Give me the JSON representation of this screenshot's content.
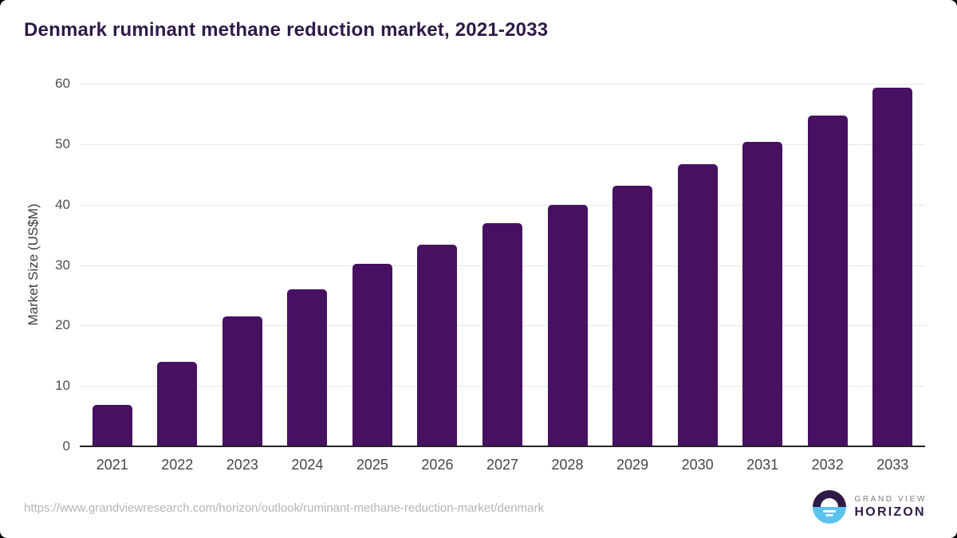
{
  "header": {
    "title": "Denmark ruminant methane reduction market, 2021-2033"
  },
  "chart_data": {
    "type": "bar",
    "title": "Denmark ruminant methane reduction market, 2021-2033",
    "categories": [
      "2021",
      "2022",
      "2023",
      "2024",
      "2025",
      "2026",
      "2027",
      "2028",
      "2029",
      "2030",
      "2031",
      "2032",
      "2033"
    ],
    "values": [
      6.7,
      13.8,
      21.4,
      25.9,
      30.1,
      33.2,
      36.8,
      39.8,
      43.0,
      46.5,
      50.3,
      54.6,
      59.2
    ],
    "xlabel": "",
    "ylabel": "Market Size (US$M)",
    "ylim": [
      0,
      60
    ],
    "yticks": [
      0,
      10,
      20,
      30,
      40,
      50,
      60
    ],
    "grid": true,
    "legend": "none",
    "bar_color": "#471061"
  },
  "footer": {
    "source_url": "https://www.grandviewresearch.com/horizon/outlook/ruminant-methane-reduction-market/denmark",
    "logo": {
      "line1": "GRAND VIEW",
      "line2": "HORIZON"
    }
  },
  "colors": {
    "title": "#2e1a47",
    "bar": "#471061",
    "gridline": "#e7e7e7",
    "axis_line": "#222222",
    "tick_label": "#4f4f4f",
    "url_text": "#b5b5b5",
    "logo_purple": "#2e1a47",
    "logo_blue": "#5ac2ec",
    "background": "#ffffff"
  }
}
